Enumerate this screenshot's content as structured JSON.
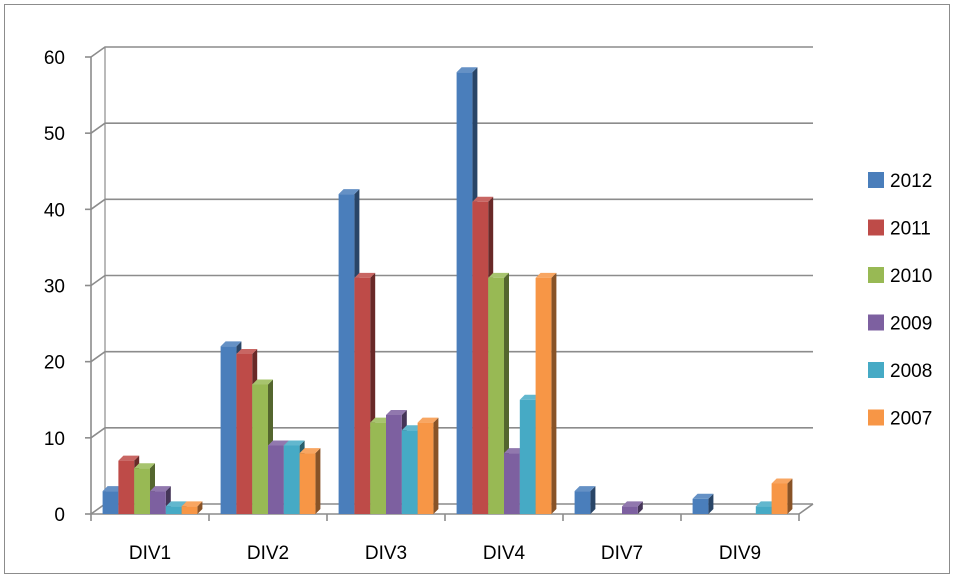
{
  "chart_data": {
    "type": "bar",
    "title": "",
    "xlabel": "",
    "ylabel": "",
    "ylim": [
      0,
      60
    ],
    "yticks": [
      0,
      10,
      20,
      30,
      40,
      50,
      60
    ],
    "categories": [
      "DIV1",
      "DIV2",
      "DIV3",
      "DIV4",
      "DIV7",
      "DIV9"
    ],
    "series": [
      {
        "name": "2012",
        "color": "#4A7EBB",
        "values": [
          3,
          22,
          42,
          58,
          3,
          2
        ]
      },
      {
        "name": "2011",
        "color": "#BE4B48",
        "values": [
          7,
          21,
          31,
          41,
          0,
          0
        ]
      },
      {
        "name": "2010",
        "color": "#98B954",
        "values": [
          6,
          17,
          12,
          31,
          0,
          0
        ]
      },
      {
        "name": "2009",
        "color": "#7D60A0",
        "values": [
          3,
          9,
          13,
          8,
          1,
          0
        ]
      },
      {
        "name": "2008",
        "color": "#46AAC5",
        "values": [
          1,
          9,
          11,
          15,
          0,
          1
        ]
      },
      {
        "name": "2007",
        "color": "#F79646",
        "values": [
          1,
          8,
          12,
          31,
          0,
          4
        ]
      }
    ],
    "grid": true,
    "legend": "right",
    "style": "3d-clustered-column"
  }
}
